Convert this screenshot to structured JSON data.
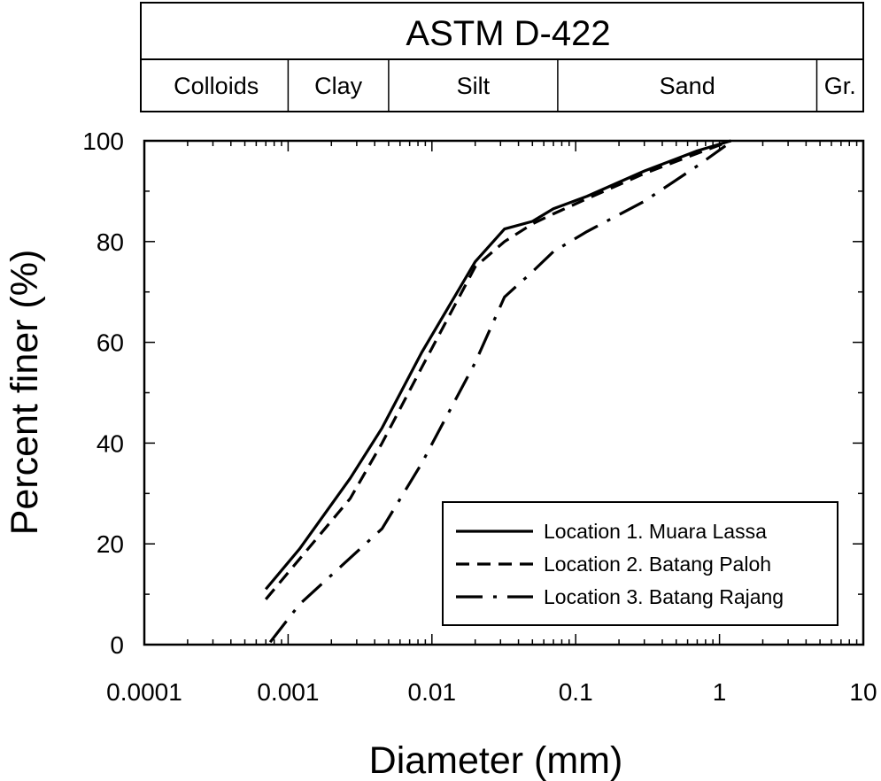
{
  "chart_data": {
    "type": "line",
    "xscale": "log",
    "xlim": [
      0.0001,
      10
    ],
    "ylim": [
      0,
      100
    ],
    "xlabel": "Diameter (mm)",
    "ylabel": "Percent finer (%)",
    "xticks": [
      {
        "value": 0.0001,
        "label": "0.0001"
      },
      {
        "value": 0.001,
        "label": "0.001"
      },
      {
        "value": 0.01,
        "label": "0.01"
      },
      {
        "value": 0.1,
        "label": "0.1"
      },
      {
        "value": 1,
        "label": "1"
      },
      {
        "value": 10,
        "label": "10"
      }
    ],
    "yticks": [
      {
        "value": 0,
        "label": "0"
      },
      {
        "value": 20,
        "label": "20"
      },
      {
        "value": 40,
        "label": "40"
      },
      {
        "value": 60,
        "label": "60"
      },
      {
        "value": 80,
        "label": "80"
      },
      {
        "value": 100,
        "label": "100"
      }
    ],
    "grid": false,
    "legend_position": "bottom-right",
    "header": {
      "title": "ASTM D-422",
      "classes": [
        {
          "label": "Colloids",
          "from": 0.0001,
          "to": 0.001
        },
        {
          "label": "Clay",
          "from": 0.001,
          "to": 0.005
        },
        {
          "label": "Silt",
          "from": 0.005,
          "to": 0.075
        },
        {
          "label": "Sand",
          "from": 0.075,
          "to": 4.75
        },
        {
          "label": "Gr.",
          "from": 4.75,
          "to": 10
        }
      ]
    },
    "series": [
      {
        "name": "Location 1. Muara Lassa",
        "dash": "solid",
        "x": [
          0.0007,
          0.0012,
          0.0027,
          0.0045,
          0.0085,
          0.02,
          0.032,
          0.05,
          0.07,
          0.12,
          0.3,
          0.7,
          1.2
        ],
        "y": [
          11,
          19,
          33,
          43,
          58,
          76,
          82.5,
          84,
          86.5,
          89,
          94,
          98,
          100
        ]
      },
      {
        "name": "Location 2. Batang Paloh",
        "dash": "dashed",
        "x": [
          0.0007,
          0.0012,
          0.0027,
          0.0045,
          0.0085,
          0.02,
          0.032,
          0.05,
          0.07,
          0.12,
          0.3,
          0.7,
          1.2
        ],
        "y": [
          9,
          17,
          29,
          40,
          55,
          75,
          80,
          83.5,
          85.5,
          88.5,
          93.5,
          97.5,
          100
        ]
      },
      {
        "name": "Location 3. Batang Rajang",
        "dash": "dashdot",
        "x": [
          0.00075,
          0.0012,
          0.0045,
          0.0085,
          0.02,
          0.032,
          0.05,
          0.07,
          0.12,
          0.3,
          0.7,
          1.1
        ],
        "y": [
          0.5,
          8,
          23,
          36,
          56,
          69,
          74,
          78,
          82,
          88,
          95,
          99
        ]
      }
    ]
  }
}
